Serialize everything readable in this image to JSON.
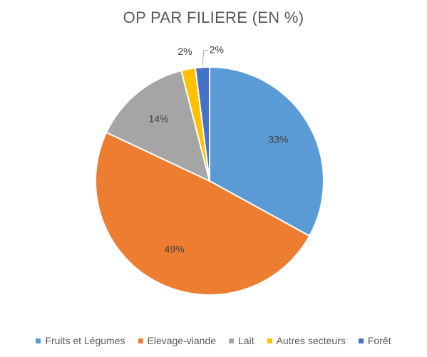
{
  "chart_data": {
    "type": "pie",
    "title": "OP PAR FILIERE (EN %)",
    "legend_position": "bottom",
    "slices": [
      {
        "label": "Fruits et Légumes",
        "value": 33,
        "display": "33%",
        "color": "#5B9BD5"
      },
      {
        "label": "Elevage-viande",
        "value": 49,
        "display": "49%",
        "color": "#ED7D31"
      },
      {
        "label": "Lait",
        "value": 14,
        "display": "14%",
        "color": "#A5A5A5"
      },
      {
        "label": "Autres secteurs",
        "value": 2,
        "display": "2%",
        "color": "#FFC000"
      },
      {
        "label": "Forêt",
        "value": 2,
        "display": "2%",
        "color": "#4472C4"
      }
    ]
  }
}
